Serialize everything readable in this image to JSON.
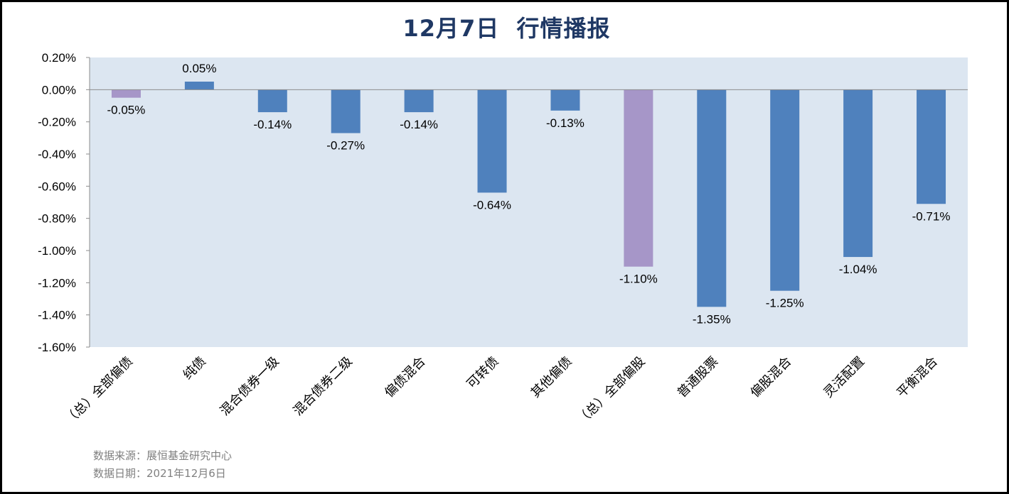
{
  "chart_data": {
    "type": "bar",
    "title": "12月7日  行情播报",
    "categories": [
      "（总）全部偏债",
      "纯债",
      "混合债券一级",
      "混合债券二级",
      "偏债混合",
      "可转债",
      "其他偏债",
      "（总）全部偏股",
      "普通股票",
      "偏股混合",
      "灵活配置",
      "平衡混合"
    ],
    "values": [
      -0.05,
      0.05,
      -0.14,
      -0.27,
      -0.14,
      -0.64,
      -0.13,
      -1.1,
      -1.35,
      -1.25,
      -1.04,
      -0.71
    ],
    "value_labels": [
      "-0.05%",
      "0.05%",
      "-0.14%",
      "-0.27%",
      "-0.14%",
      "-0.64%",
      "-0.13%",
      "-1.10%",
      "-1.35%",
      "-1.25%",
      "-1.04%",
      "-0.71%"
    ],
    "bar_colors": [
      "#a696c8",
      "#4f81bd",
      "#4f81bd",
      "#4f81bd",
      "#4f81bd",
      "#4f81bd",
      "#4f81bd",
      "#a696c8",
      "#4f81bd",
      "#4f81bd",
      "#4f81bd",
      "#4f81bd"
    ],
    "ylim": [
      -1.6,
      0.2
    ],
    "yticks": [
      0.2,
      0.0,
      -0.2,
      -0.4,
      -0.6,
      -0.8,
      -1.0,
      -1.2,
      -1.4,
      -1.6
    ],
    "ytick_labels": [
      "0.20%",
      "0.00%",
      "-0.20%",
      "-0.40%",
      "-0.60%",
      "-0.80%",
      "-1.00%",
      "-1.20%",
      "-1.40%",
      "-1.60%"
    ],
    "xlabel": "",
    "ylabel": "",
    "grid": false,
    "plot_background": "#dce6f1"
  },
  "footer": {
    "source": "数据来源：展恒基金研究中心",
    "date": "数据日期：2021年12月6日"
  }
}
